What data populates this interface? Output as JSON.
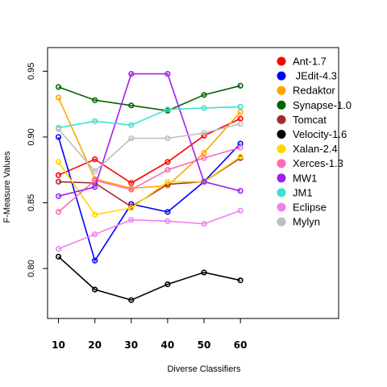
{
  "chart_data": {
    "type": "line",
    "xlabel": "Diverse Classifiers",
    "ylabel": "F-Measure Values",
    "x": [
      10,
      20,
      30,
      40,
      50,
      60
    ],
    "xticks": [
      "10",
      "20",
      "30",
      "40",
      "50",
      "60"
    ],
    "yticks": [
      "0.80",
      "0.85",
      "0.90",
      "0.95"
    ],
    "xlim": [
      7,
      87
    ],
    "ylim": [
      0.762,
      0.968
    ],
    "grid": false,
    "legend_position": "top-right",
    "series": [
      {
        "name": "Ant-1.7",
        "color": "#ff0000",
        "values": [
          0.871,
          0.883,
          0.865,
          0.881,
          0.901,
          0.914
        ]
      },
      {
        "name": " JEdit-4.3",
        "color": "#0000ff",
        "values": [
          0.9,
          0.806,
          0.849,
          0.843,
          0.866,
          0.895
        ]
      },
      {
        "name": "Redaktor",
        "color": "#ffa500",
        "values": [
          0.93,
          0.868,
          0.861,
          0.863,
          0.888,
          0.919
        ]
      },
      {
        "name": "Synapse-1.0",
        "color": "#006400",
        "values": [
          0.938,
          0.928,
          0.924,
          0.92,
          0.932,
          0.939
        ]
      },
      {
        "name": "Tomcat",
        "color": "#a52a2a",
        "values": [
          0.866,
          0.865,
          0.847,
          0.864,
          0.866,
          0.884
        ]
      },
      {
        "name": "Velocity-1.6",
        "color": "#000000",
        "values": [
          0.809,
          0.784,
          0.776,
          0.788,
          0.797,
          0.791
        ]
      },
      {
        "name": "Xalan-2.4",
        "color": "#ffd700",
        "values": [
          0.881,
          0.841,
          0.846,
          0.866,
          0.866,
          0.885
        ]
      },
      {
        "name": "Xerces-1.3",
        "color": "#ff69b4",
        "values": [
          0.843,
          0.867,
          0.86,
          0.875,
          0.884,
          0.892
        ]
      },
      {
        "name": "MW1",
        "color": "#a020f0",
        "values": [
          0.855,
          0.862,
          0.948,
          0.948,
          0.866,
          0.859
        ]
      },
      {
        "name": "JM1",
        "color": "#40e0d0",
        "values": [
          0.907,
          0.912,
          0.909,
          0.921,
          0.922,
          0.923
        ]
      },
      {
        "name": "Eclipse",
        "color": "#ee82ee",
        "values": [
          0.815,
          0.826,
          0.837,
          0.836,
          0.834,
          0.844
        ]
      },
      {
        "name": "Mylyn",
        "color": "#bebebe",
        "values": [
          0.906,
          0.874,
          0.899,
          0.899,
          0.903,
          0.91
        ]
      }
    ]
  }
}
